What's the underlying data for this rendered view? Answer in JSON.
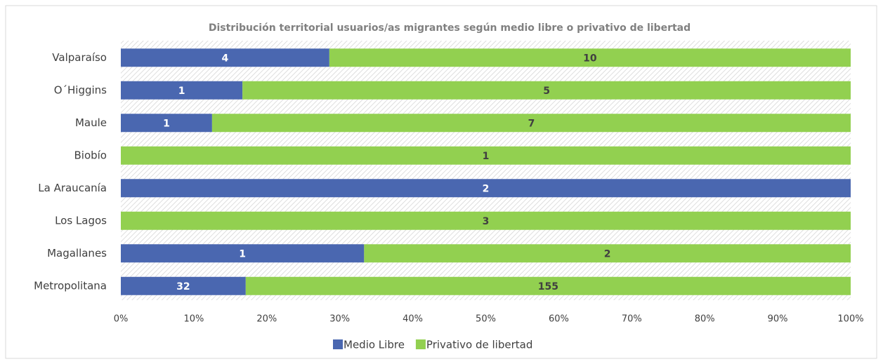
{
  "chart_data": {
    "type": "bar",
    "orientation": "horizontal",
    "stack": "percent",
    "title": "Distribución territorial usuarios/as migrantes según medio libre o privativo de libertad",
    "categories": [
      "Valparaíso",
      "O´Higgins",
      "Maule",
      "Biobío",
      "La Araucanía",
      "Los Lagos",
      "Magallanes",
      "Metropolitana"
    ],
    "series": [
      {
        "name": "Medio Libre",
        "color": "#4a67b0",
        "label_color": "#ffffff",
        "values": [
          4,
          1,
          1,
          null,
          2,
          null,
          1,
          32
        ]
      },
      {
        "name": "Privativo de libertad",
        "color": "#92d050",
        "label_color": "#404040",
        "values": [
          10,
          5,
          7,
          1,
          null,
          3,
          2,
          155
        ]
      }
    ],
    "xlim": [
      0,
      100
    ],
    "xticks": [
      {
        "value": 0,
        "label": "0%"
      },
      {
        "value": 10,
        "label": "10%"
      },
      {
        "value": 20,
        "label": "20%"
      },
      {
        "value": 30,
        "label": "30%"
      },
      {
        "value": 40,
        "label": "40%"
      },
      {
        "value": 50,
        "label": "50%"
      },
      {
        "value": 60,
        "label": "60%"
      },
      {
        "value": 70,
        "label": "70%"
      },
      {
        "value": 80,
        "label": "80%"
      },
      {
        "value": 90,
        "label": "90%"
      },
      {
        "value": 100,
        "label": "100%"
      }
    ],
    "grid": false,
    "legend": "bottom"
  }
}
